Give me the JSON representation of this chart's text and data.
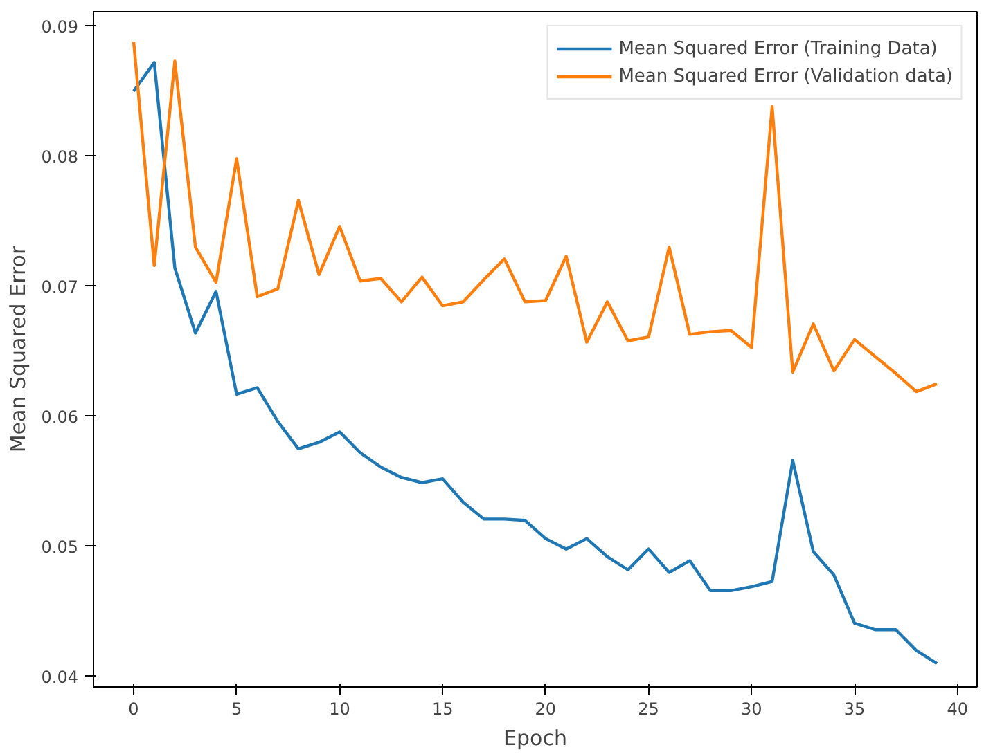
{
  "chart_data": {
    "type": "line",
    "xlabel": "Epoch",
    "ylabel": "Mean Squared Error",
    "x": [
      0,
      1,
      2,
      3,
      4,
      5,
      6,
      7,
      8,
      9,
      10,
      11,
      12,
      13,
      14,
      15,
      16,
      17,
      18,
      19,
      20,
      21,
      22,
      23,
      24,
      25,
      26,
      27,
      28,
      29,
      30,
      31,
      32,
      33,
      34,
      35,
      36,
      37,
      38,
      39
    ],
    "series": [
      {
        "name": "Mean Squared Error (Training Data)",
        "color": "#1f77b4",
        "values": [
          0.085,
          0.0872,
          0.0714,
          0.0664,
          0.0696,
          0.0617,
          0.0622,
          0.0596,
          0.0575,
          0.058,
          0.0588,
          0.0572,
          0.0561,
          0.0553,
          0.0549,
          0.0552,
          0.0534,
          0.0521,
          0.0521,
          0.052,
          0.0506,
          0.0498,
          0.0506,
          0.0492,
          0.0482,
          0.0498,
          0.048,
          0.0489,
          0.0466,
          0.0466,
          0.0469,
          0.0473,
          0.0566,
          0.0496,
          0.0478,
          0.0441,
          0.0436,
          0.0436,
          0.042,
          0.041
        ]
      },
      {
        "name": "Mean Squared Error (Validation data)",
        "color": "#ff7f0e",
        "values": [
          0.0888,
          0.0716,
          0.0873,
          0.073,
          0.0703,
          0.0798,
          0.0692,
          0.0698,
          0.0766,
          0.0709,
          0.0746,
          0.0704,
          0.0706,
          0.0688,
          0.0707,
          0.0685,
          0.0688,
          0.0705,
          0.0721,
          0.0688,
          0.0689,
          0.0723,
          0.0657,
          0.0688,
          0.0658,
          0.0661,
          0.073,
          0.0663,
          0.0665,
          0.0666,
          0.0653,
          0.0838,
          0.0634,
          0.0671,
          0.0635,
          0.0659,
          0.0646,
          0.0633,
          0.0619,
          0.0625
        ]
      }
    ],
    "xlim": [
      -1.95,
      40.95
    ],
    "ylim": [
      0.0392,
      0.0911
    ],
    "xticks": [
      0,
      5,
      10,
      15,
      20,
      25,
      30,
      35,
      40
    ],
    "yticks": [
      {
        "value": 0.04,
        "label": "0.04"
      },
      {
        "value": 0.05,
        "label": "0.05"
      },
      {
        "value": 0.06,
        "label": "0.06"
      },
      {
        "value": 0.07,
        "label": "0.07"
      },
      {
        "value": 0.08,
        "label": "0.08"
      },
      {
        "value": 0.09,
        "label": "0.09"
      }
    ],
    "legend": "top right",
    "grid": false
  }
}
